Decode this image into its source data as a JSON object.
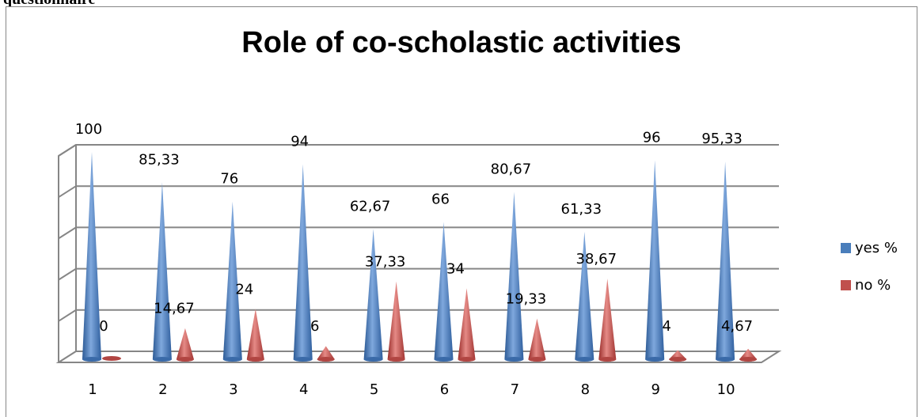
{
  "top_text": "questionnaire",
  "colors": {
    "yes": "#4a7ebb",
    "no": "#c0504d",
    "grid": "#868686"
  },
  "chart_data": {
    "type": "bar",
    "title": "Role of co-scholastic activities",
    "categories": [
      "1",
      "2",
      "3",
      "4",
      "5",
      "6",
      "7",
      "8",
      "9",
      "10"
    ],
    "series": [
      {
        "name": "yes %",
        "values": [
          100,
          85.33,
          76,
          94,
          62.67,
          66,
          80.67,
          61.33,
          96,
          95.33
        ],
        "labels": [
          "100",
          "85,33",
          "76",
          "94",
          "62,67",
          "66",
          "80,67",
          "61,33",
          "96",
          "95,33"
        ]
      },
      {
        "name": "no %",
        "values": [
          0,
          14.67,
          24,
          6,
          37.33,
          34,
          19.33,
          38.67,
          4,
          4.67
        ],
        "labels": [
          "0",
          "14,67",
          "24",
          "6",
          "37,33",
          "34",
          "19,33",
          "38,67",
          "4",
          "4,67"
        ]
      }
    ],
    "ylim": [
      0,
      100
    ],
    "grid": true,
    "legend_position": "right",
    "style": "3d-cone"
  }
}
